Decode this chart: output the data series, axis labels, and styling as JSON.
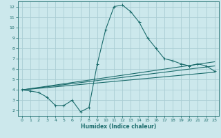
{
  "xlabel": "Humidex (Indice chaleur)",
  "bg_color": "#cce8ec",
  "grid_color": "#aacdd4",
  "line_color": "#1a6b6b",
  "xlim": [
    -0.5,
    23.5
  ],
  "ylim": [
    1.5,
    12.5
  ],
  "xticks": [
    0,
    1,
    2,
    3,
    4,
    5,
    6,
    7,
    8,
    9,
    10,
    11,
    12,
    13,
    14,
    15,
    16,
    17,
    18,
    19,
    20,
    21,
    22,
    23
  ],
  "yticks": [
    2,
    3,
    4,
    5,
    6,
    7,
    8,
    9,
    10,
    11,
    12
  ],
  "main_x": [
    0,
    1,
    2,
    3,
    4,
    5,
    6,
    7,
    8,
    9,
    10,
    11,
    12,
    13,
    14,
    15,
    16,
    17,
    18,
    19,
    20,
    21,
    22,
    23
  ],
  "main_y": [
    4.0,
    3.9,
    3.75,
    3.3,
    2.5,
    2.5,
    3.0,
    1.9,
    2.3,
    6.5,
    9.8,
    12.0,
    12.15,
    11.5,
    10.5,
    9.0,
    8.0,
    7.0,
    6.8,
    6.5,
    6.3,
    6.5,
    6.3,
    5.8
  ],
  "line1_x": [
    0,
    23
  ],
  "line1_y": [
    4.0,
    6.7
  ],
  "line2_x": [
    0,
    23
  ],
  "line2_y": [
    4.0,
    6.3
  ],
  "line3_x": [
    0,
    23
  ],
  "line3_y": [
    4.0,
    5.7
  ]
}
